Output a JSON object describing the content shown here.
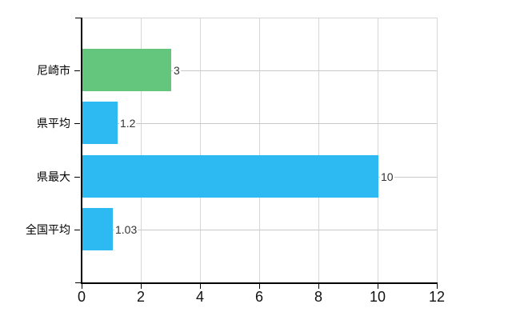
{
  "chart_data": {
    "type": "bar",
    "orientation": "horizontal",
    "title": "",
    "xlabel": "",
    "ylabel": "",
    "categories": [
      "尼崎市",
      "県平均",
      "県最大",
      "全国平均"
    ],
    "values": [
      3,
      1.2,
      10,
      1.03
    ],
    "value_labels": [
      "3",
      "1.2",
      "10",
      "1.03"
    ],
    "bar_colors": [
      "#63c67c",
      "#2db9f1",
      "#2db9f1",
      "#2db9f1"
    ],
    "xlim": [
      0,
      12
    ],
    "x_ticks": [
      0,
      2,
      4,
      6,
      8,
      10,
      12
    ],
    "x_tick_labels": [
      "0",
      "2",
      "4",
      "6",
      "8",
      "10",
      "12"
    ],
    "grid": true,
    "legend_position": "none"
  },
  "colors": {
    "background": "#ffffff",
    "axis": "#000000",
    "grid_vertical": "#d6d6d6",
    "grid_horizontal": "#c9c9c9",
    "tick_label": "#111111",
    "category_label": "#000000",
    "value_label": "#333333"
  }
}
